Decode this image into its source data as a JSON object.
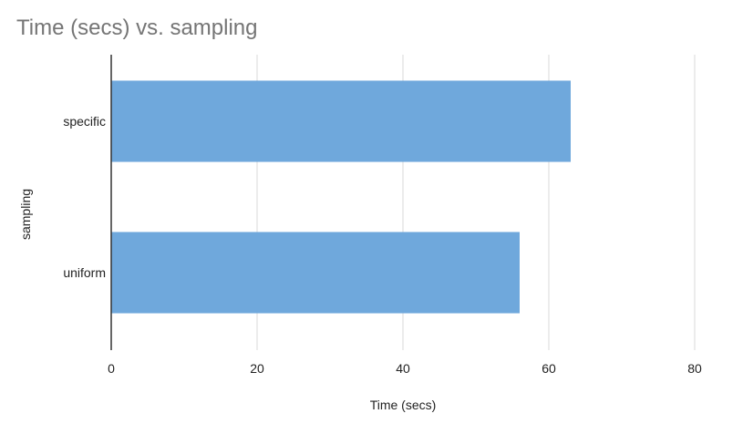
{
  "chart_data": {
    "type": "bar",
    "orientation": "horizontal",
    "title": "Time (secs) vs. sampling",
    "xlabel": "Time (secs)",
    "ylabel": "sampling",
    "categories": [
      "specific",
      "uniform"
    ],
    "values": [
      63,
      56
    ],
    "xlim": [
      0,
      80
    ],
    "x_ticks": [
      "0",
      "20",
      "40",
      "60",
      "80"
    ],
    "grid": true,
    "legend": "none",
    "bar_color": "#6fa8dc",
    "gridline_color": "#d9d9d9",
    "axis_color": "#333333",
    "title_color": "#757575"
  }
}
